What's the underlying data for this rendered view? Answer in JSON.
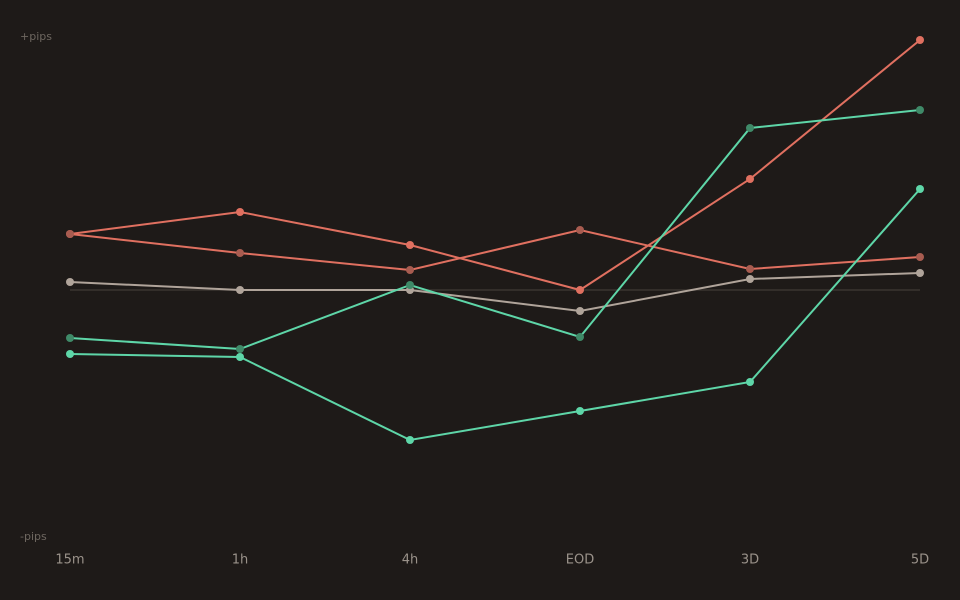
{
  "chart_data": {
    "type": "line",
    "y_top_label": "+pips",
    "y_bottom_label": "-pips",
    "categories": [
      "15m",
      "1h",
      "4h",
      "EOD",
      "3D",
      "5D"
    ],
    "ylim": [
      -100,
      100
    ],
    "zero_line": true,
    "series": [
      {
        "color": "#e07060",
        "marker_color": "#e07060",
        "values": [
          22.4,
          31.2,
          18,
          0,
          44.4,
          100
        ]
      },
      {
        "color": "#e07060",
        "marker_color": "#a85c50",
        "values": [
          22.4,
          14.8,
          8,
          24,
          8.4,
          13.2
        ]
      },
      {
        "color": "#b0a49a",
        "marker_color": "#b0a49a",
        "values": [
          3.2,
          0,
          0,
          -8.4,
          4.4,
          6.8
        ]
      },
      {
        "color": "#5ed6a8",
        "marker_color": "#3f8a68",
        "values": [
          -19.2,
          -23.6,
          2,
          -18.8,
          64.8,
          72
        ]
      },
      {
        "color": "#5ed6a8",
        "marker_color": "#5ed6a8",
        "values": [
          -25.6,
          -26.8,
          -60,
          -48.4,
          -36.8,
          40.4
        ]
      }
    ]
  }
}
